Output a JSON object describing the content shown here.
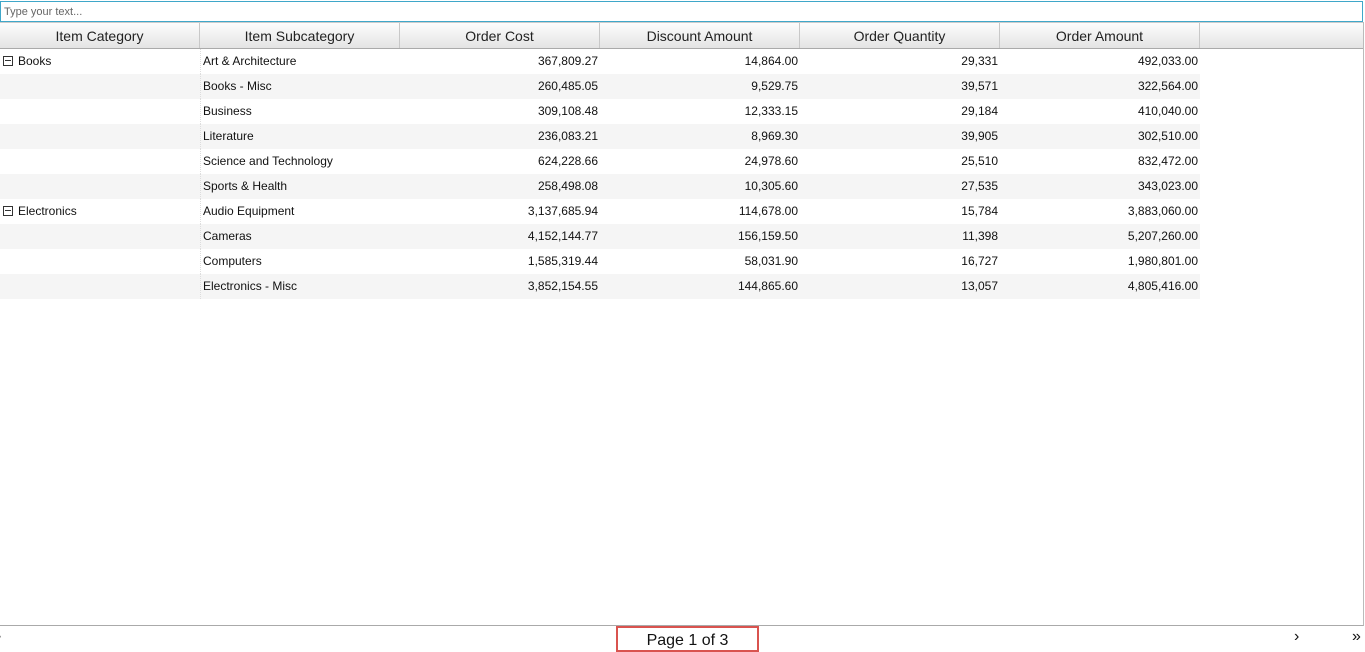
{
  "search": {
    "placeholder": "Type your text..."
  },
  "columns": [
    "Item Category",
    "Item Subcategory",
    "Order Cost",
    "Discount Amount",
    "Order Quantity",
    "Order Amount"
  ],
  "rows": [
    {
      "category": "Books",
      "sub": "Art & Architecture",
      "cost": "367,809.27",
      "discount": "14,864.00",
      "qty": "29,331",
      "amount": "492,033.00"
    },
    {
      "category": "",
      "sub": "Books - Misc",
      "cost": "260,485.05",
      "discount": "9,529.75",
      "qty": "39,571",
      "amount": "322,564.00"
    },
    {
      "category": "",
      "sub": "Business",
      "cost": "309,108.48",
      "discount": "12,333.15",
      "qty": "29,184",
      "amount": "410,040.00"
    },
    {
      "category": "",
      "sub": "Literature",
      "cost": "236,083.21",
      "discount": "8,969.30",
      "qty": "39,905",
      "amount": "302,510.00"
    },
    {
      "category": "",
      "sub": "Science and Technology",
      "cost": "624,228.66",
      "discount": "24,978.60",
      "qty": "25,510",
      "amount": "832,472.00"
    },
    {
      "category": "",
      "sub": "Sports & Health",
      "cost": "258,498.08",
      "discount": "10,305.60",
      "qty": "27,535",
      "amount": "343,023.00"
    },
    {
      "category": "Electronics",
      "sub": "Audio Equipment",
      "cost": "3,137,685.94",
      "discount": "114,678.00",
      "qty": "15,784",
      "amount": "3,883,060.00"
    },
    {
      "category": "",
      "sub": "Cameras",
      "cost": "4,152,144.77",
      "discount": "156,159.50",
      "qty": "11,398",
      "amount": "5,207,260.00"
    },
    {
      "category": "",
      "sub": "Computers",
      "cost": "1,585,319.44",
      "discount": "58,031.90",
      "qty": "16,727",
      "amount": "1,980,801.00"
    },
    {
      "category": "",
      "sub": "Electronics - Misc",
      "cost": "3,852,154.55",
      "discount": "144,865.60",
      "qty": "13,057",
      "amount": "4,805,416.00"
    }
  ],
  "pager": {
    "label": "Page 1 of 3",
    "next_icon": "chevron-right-icon",
    "last_icon": "double-chevron-right-icon",
    "highlight_color": "#d9534f"
  }
}
